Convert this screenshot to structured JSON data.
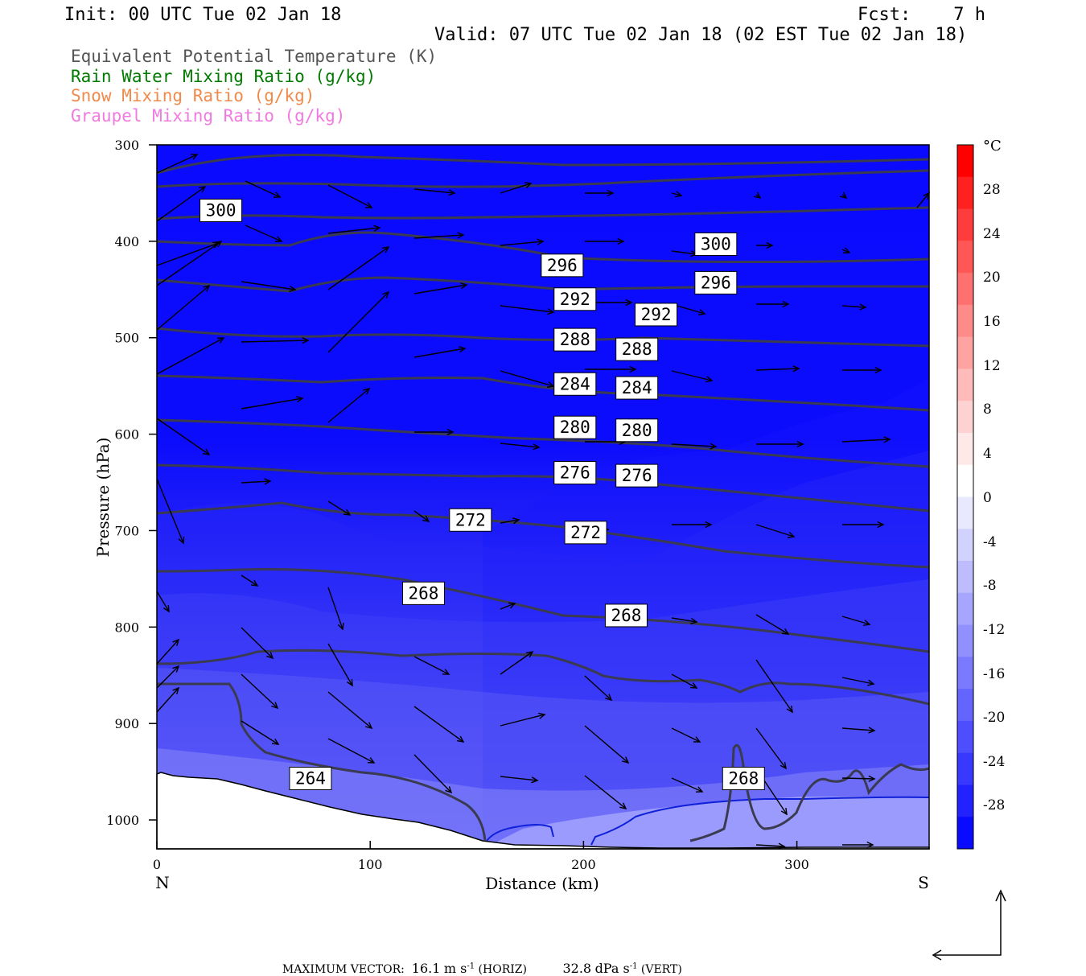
{
  "header": {
    "init": "Init: 00 UTC Tue 02 Jan 18",
    "fcst": "Fcst:    7 h",
    "valid": "Valid: 07 UTC Tue 02 Jan 18 (02 EST Tue 02 Jan 18)"
  },
  "legend": [
    {
      "text": "Equivalent Potential Temperature (K)",
      "color": "#555555"
    },
    {
      "text": "Rain Water Mixing Ratio (g/kg)",
      "color": "#007a00"
    },
    {
      "text": "Snow Mixing Ratio (g/kg)",
      "color": "#f08a4b"
    },
    {
      "text": "Graupel Mixing Ratio (g/kg)",
      "color": "#f07ae0"
    }
  ],
  "footer": {
    "label": "MAXIMUM VECTOR:",
    "horiz_value": "16.1",
    "horiz_units": "m s",
    "horiz_exp": "-1",
    "horiz_tag": "(HORIZ)",
    "vert_value": "32.8",
    "vert_units": "dPa s",
    "vert_exp": "-1",
    "vert_tag": "(VERT)"
  },
  "chart_data": {
    "type": "cross-section",
    "xlabel": "Distance (km)",
    "ylabel": "Pressure (hPa)",
    "xlim": [
      0,
      362
    ],
    "ylim": [
      1030,
      300
    ],
    "x_ticks": [
      0,
      100,
      200,
      300
    ],
    "y_ticks": [
      300,
      400,
      500,
      600,
      700,
      800,
      900,
      1000
    ],
    "end_labels": {
      "left": "N",
      "right": "S"
    },
    "colorbar": {
      "unit": "°C",
      "tick_labels": [
        "28",
        "24",
        "20",
        "16",
        "12",
        "8",
        "4",
        "0",
        "-4",
        "-8",
        "-12",
        "-16",
        "-20",
        "-24",
        "-28"
      ],
      "colors": [
        "#ff0000",
        "#ff2020",
        "#ff3c3c",
        "#ff5656",
        "#ff7070",
        "#ff8a8a",
        "#ffa2a2",
        "#ffbaba",
        "#ffd2d2",
        "#ffe8e8",
        "#ffffff",
        "#e8e8ff",
        "#d2d2ff",
        "#bcbcff",
        "#a6a6ff",
        "#9090ff",
        "#7a7aff",
        "#6464ff",
        "#4e4eff",
        "#3838ff",
        "#2222ff",
        "#0a0aff"
      ]
    },
    "theta_e_labels": [
      {
        "text": "300",
        "x": 30,
        "p": 368
      },
      {
        "text": "300",
        "x": 262,
        "p": 403
      },
      {
        "text": "296",
        "x": 190,
        "p": 425
      },
      {
        "text": "296",
        "x": 262,
        "p": 443
      },
      {
        "text": "292",
        "x": 196,
        "p": 460
      },
      {
        "text": "292",
        "x": 234,
        "p": 476
      },
      {
        "text": "288",
        "x": 196,
        "p": 502
      },
      {
        "text": "288",
        "x": 225,
        "p": 512
      },
      {
        "text": "284",
        "x": 196,
        "p": 548
      },
      {
        "text": "284",
        "x": 225,
        "p": 552
      },
      {
        "text": "280",
        "x": 196,
        "p": 593
      },
      {
        "text": "280",
        "x": 225,
        "p": 596
      },
      {
        "text": "276",
        "x": 196,
        "p": 640
      },
      {
        "text": "276",
        "x": 225,
        "p": 643
      },
      {
        "text": "272",
        "x": 147,
        "p": 689
      },
      {
        "text": "272",
        "x": 201,
        "p": 702
      },
      {
        "text": "268",
        "x": 125,
        "p": 765
      },
      {
        "text": "268",
        "x": 220,
        "p": 788
      },
      {
        "text": "264",
        "x": 72,
        "p": 957
      },
      {
        "text": "268",
        "x": 275,
        "p": 957
      }
    ]
  }
}
